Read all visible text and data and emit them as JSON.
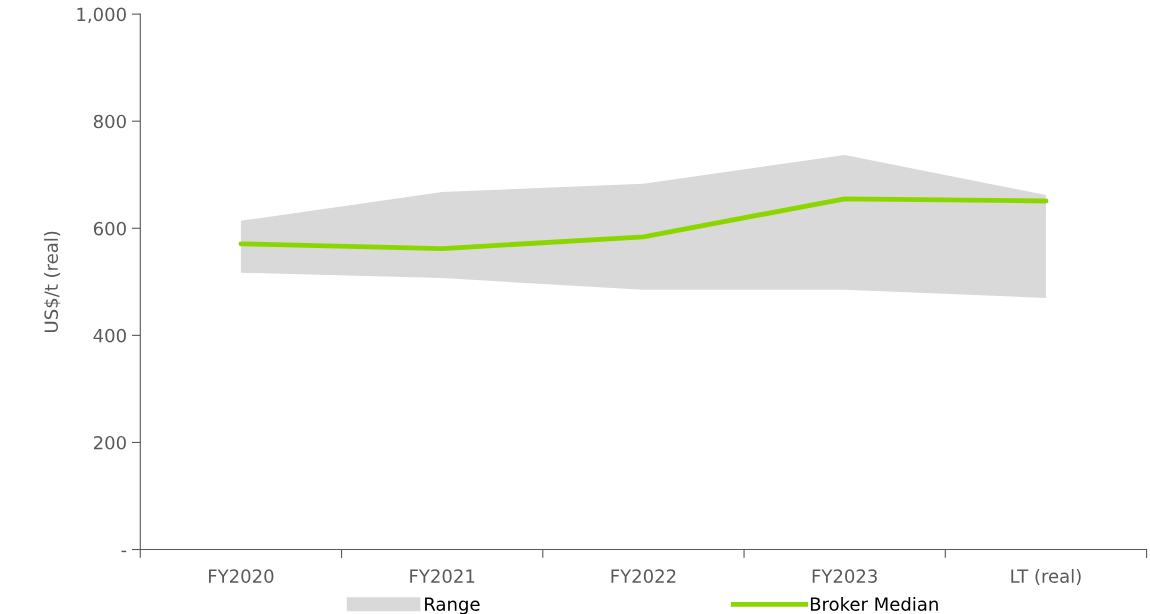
{
  "chart_data": {
    "type": "line",
    "ylabel": "US$/t (real)",
    "categories": [
      "FY2020",
      "FY2021",
      "FY2022",
      "FY2023",
      "LT (real)"
    ],
    "series": [
      {
        "name": "Range",
        "type": "area",
        "color": "#d9d9d9",
        "values": [
          null,
          null,
          null,
          null,
          null
        ]
      },
      {
        "name": "Broker Median",
        "type": "line",
        "color": "#8cd600",
        "values": [
          571,
          562,
          584,
          655,
          651
        ],
        "lower": [
          517,
          507,
          485,
          485,
          470
        ],
        "upper": [
          614,
          668,
          683,
          737,
          662
        ]
      }
    ],
    "ylim": [
      0,
      1000
    ],
    "yticks": [
      {
        "value": 0,
        "label": "-"
      },
      200,
      400,
      600,
      800,
      {
        "value": 1000,
        "label": "1,000"
      }
    ],
    "grid": false,
    "legend": "bottom",
    "marker": "none",
    "line_style": "solid"
  }
}
